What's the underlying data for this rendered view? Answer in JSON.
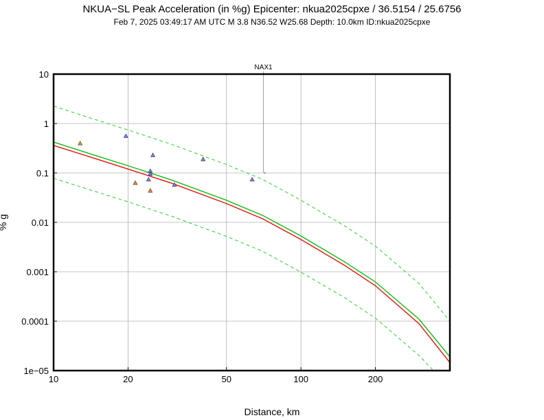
{
  "chart_data": {
    "type": "scatter",
    "title": "NKUA−SL Peak Acceleration (in %g) Epicenter: nkua2025cpxe / 36.5154 / 25.6756",
    "subtitle": "Feb  7, 2025 03:49:17 AM UTC   M 3.8   N36.52 W25.68   Depth: 10.0km   ID:nkua2025cpxe",
    "xlabel": "Distance, km",
    "ylabel": "% g",
    "x_scale": "log",
    "y_scale": "log",
    "xlim": [
      10,
      400
    ],
    "ylim": [
      1e-05,
      10
    ],
    "grid": true,
    "x_ticks": [
      {
        "value": 10,
        "label": "10"
      },
      {
        "value": 20,
        "label": "20"
      },
      {
        "value": 50,
        "label": "50"
      },
      {
        "value": 100,
        "label": "100"
      },
      {
        "value": 200,
        "label": "200"
      }
    ],
    "y_ticks": [
      {
        "value": 10,
        "label": "10"
      },
      {
        "value": 1,
        "label": "1"
      },
      {
        "value": 0.1,
        "label": "0.1"
      },
      {
        "value": 0.01,
        "label": "0.01"
      },
      {
        "value": 0.001,
        "label": "0.001"
      },
      {
        "value": 0.0001,
        "label": "0.0001"
      },
      {
        "value": 1e-05,
        "label": "1e−05"
      }
    ],
    "points": [
      {
        "x": 12.8,
        "y": 0.4,
        "color": "#e8902a"
      },
      {
        "x": 19.6,
        "y": 0.56,
        "color": "#7b7bff"
      },
      {
        "x": 21.4,
        "y": 0.063,
        "color": "#e8902a"
      },
      {
        "x": 24.2,
        "y": 0.074,
        "color": "#7b7bff"
      },
      {
        "x": 24.6,
        "y": 0.11,
        "color": "#7b7bff"
      },
      {
        "x": 24.6,
        "y": 0.096,
        "color": "#7b7bff"
      },
      {
        "x": 24.6,
        "y": 0.044,
        "color": "#e8902a"
      },
      {
        "x": 25.2,
        "y": 0.23,
        "color": "#7b7bff"
      },
      {
        "x": 30.8,
        "y": 0.058,
        "color": "#7b7bff"
      },
      {
        "x": 40.2,
        "y": 0.19,
        "color": "#7b7bff"
      },
      {
        "x": 63.5,
        "y": 0.074,
        "color": "#7b7bff"
      }
    ],
    "annotation": {
      "label": "NAX1",
      "x": 70.5,
      "y": 0.1,
      "color": "#22cccc"
    },
    "curves": [
      {
        "style": "solid",
        "color": "#dd1111",
        "x": [
          10,
          15,
          20,
          30,
          50,
          70,
          100,
          150,
          200,
          300,
          400
        ],
        "y": [
          0.36,
          0.19,
          0.12,
          0.062,
          0.024,
          0.0118,
          0.0045,
          0.00135,
          0.00052,
          8.9e-05,
          1.45e-05
        ]
      },
      {
        "style": "solid",
        "color": "#11bb11",
        "x": [
          10,
          15,
          20,
          30,
          50,
          70,
          100,
          150,
          200,
          300,
          400
        ],
        "y": [
          0.42,
          0.22,
          0.14,
          0.072,
          0.028,
          0.0138,
          0.0053,
          0.00159,
          0.00062,
          0.00011,
          1.9e-05
        ]
      },
      {
        "style": "dashed",
        "color": "#33cc33",
        "x": [
          10,
          15,
          20,
          30,
          50,
          70,
          100,
          150,
          200,
          300,
          400
        ],
        "y": [
          2.25,
          1.17,
          0.74,
          0.38,
          0.148,
          0.074,
          0.028,
          0.0085,
          0.0033,
          0.00058,
          0.0001
        ]
      },
      {
        "style": "dashed",
        "color": "#33cc33",
        "x": [
          10,
          15,
          20,
          30,
          50,
          70,
          100,
          150,
          200,
          300,
          340
        ],
        "y": [
          0.078,
          0.041,
          0.026,
          0.0133,
          0.0052,
          0.0026,
          0.00098,
          0.0003,
          0.000115,
          2.03e-05,
          1.05e-05
        ]
      }
    ]
  }
}
